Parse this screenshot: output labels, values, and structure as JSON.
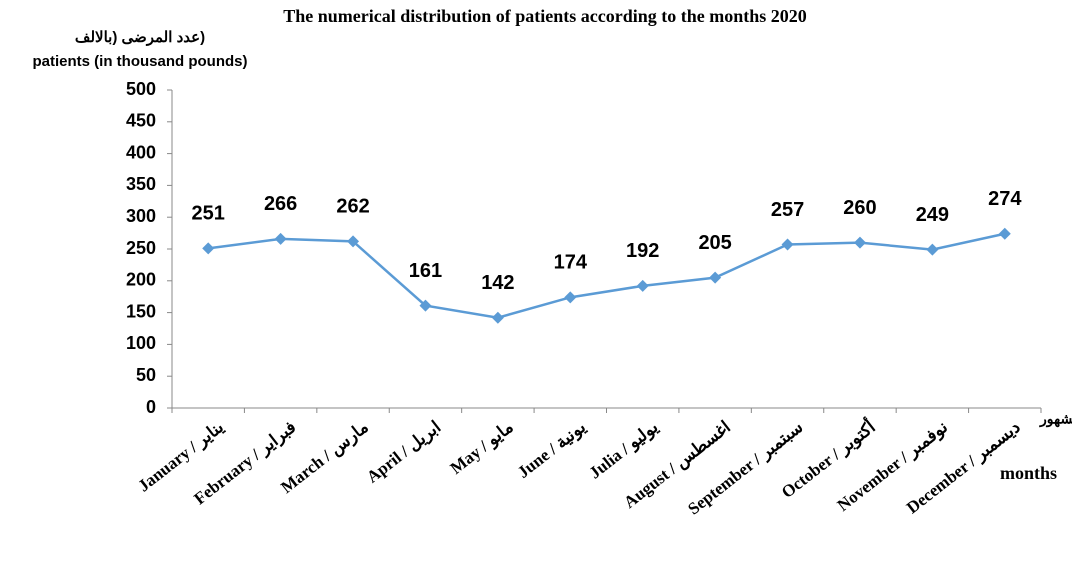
{
  "chart_data": {
    "type": "line",
    "title": "The numerical distribution of patients according to the months 2020",
    "ylabel": [
      "(عدد المرضى (بالالف",
      "patients (in thousand pounds)"
    ],
    "xlabel": [
      "الشهور",
      "months"
    ],
    "categories": [
      "January / يناير",
      "February / فبراير",
      "March / مارس",
      "April / ابريل",
      "May / مايو",
      "June / يونية",
      "Julia / يوليو",
      "August / اغسطس",
      "September / سبتمبر",
      "October / أكتوبر",
      "November / نوفمبر",
      "December / ديسمبر"
    ],
    "series": [
      {
        "name": "patients",
        "color": "#5b9bd5",
        "values": [
          251,
          266,
          262,
          161,
          142,
          174,
          192,
          205,
          257,
          260,
          249,
          274
        ]
      }
    ],
    "ylim": [
      0,
      500
    ],
    "yticks": [
      0,
      50,
      100,
      150,
      200,
      250,
      300,
      350,
      400,
      450,
      500
    ],
    "grid": false
  }
}
